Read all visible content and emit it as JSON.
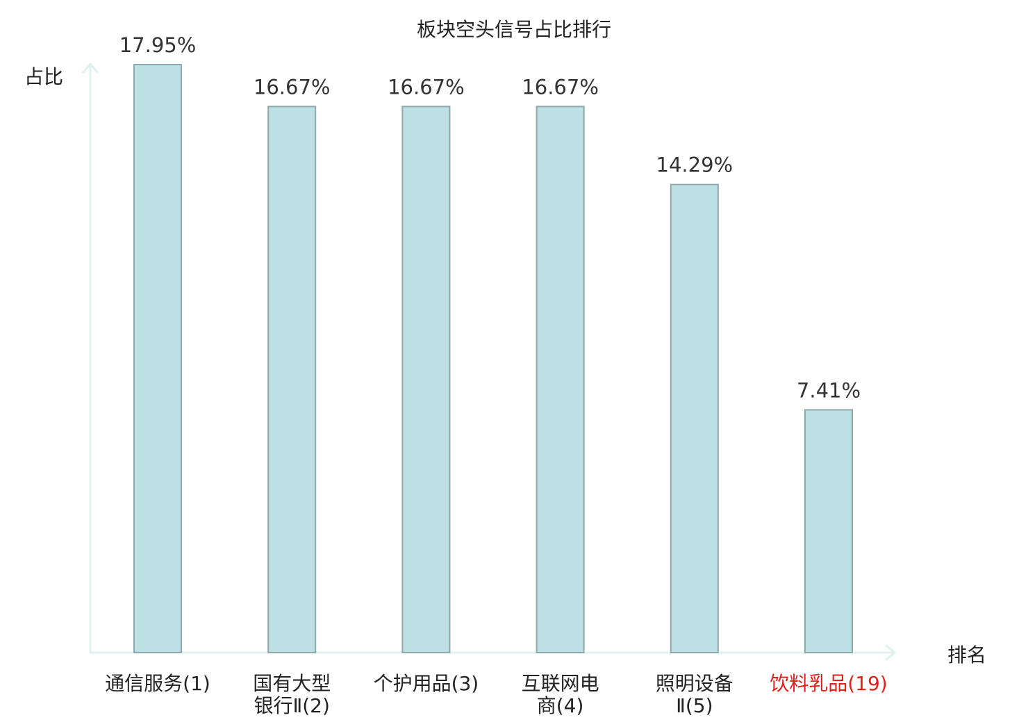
{
  "chart_data": {
    "type": "bar",
    "title": "板块空头信号占比排行",
    "ylabel": "占比",
    "xlabel": "排名",
    "ylim": [
      0,
      17.95
    ],
    "grid": false,
    "legend": "none",
    "categories": [
      [
        "通信服务(1)"
      ],
      [
        "国有大型",
        "银行Ⅱ(2)"
      ],
      [
        "个护用品(3)"
      ],
      [
        "互联网电",
        "商(4)"
      ],
      [
        "照明设备",
        "Ⅱ(5)"
      ],
      [
        "饮料乳品(19)"
      ]
    ],
    "values": [
      17.95,
      16.67,
      16.67,
      16.67,
      14.29,
      7.41
    ],
    "value_labels": [
      "17.95%",
      "16.67%",
      "16.67%",
      "16.67%",
      "14.29%",
      "7.41%"
    ],
    "highlight_index": 5,
    "colors": {
      "bar": "#bce0e3",
      "bar_border": "#8fa8aa",
      "axis": "#dff2ef",
      "highlight": "#e0201b"
    }
  }
}
